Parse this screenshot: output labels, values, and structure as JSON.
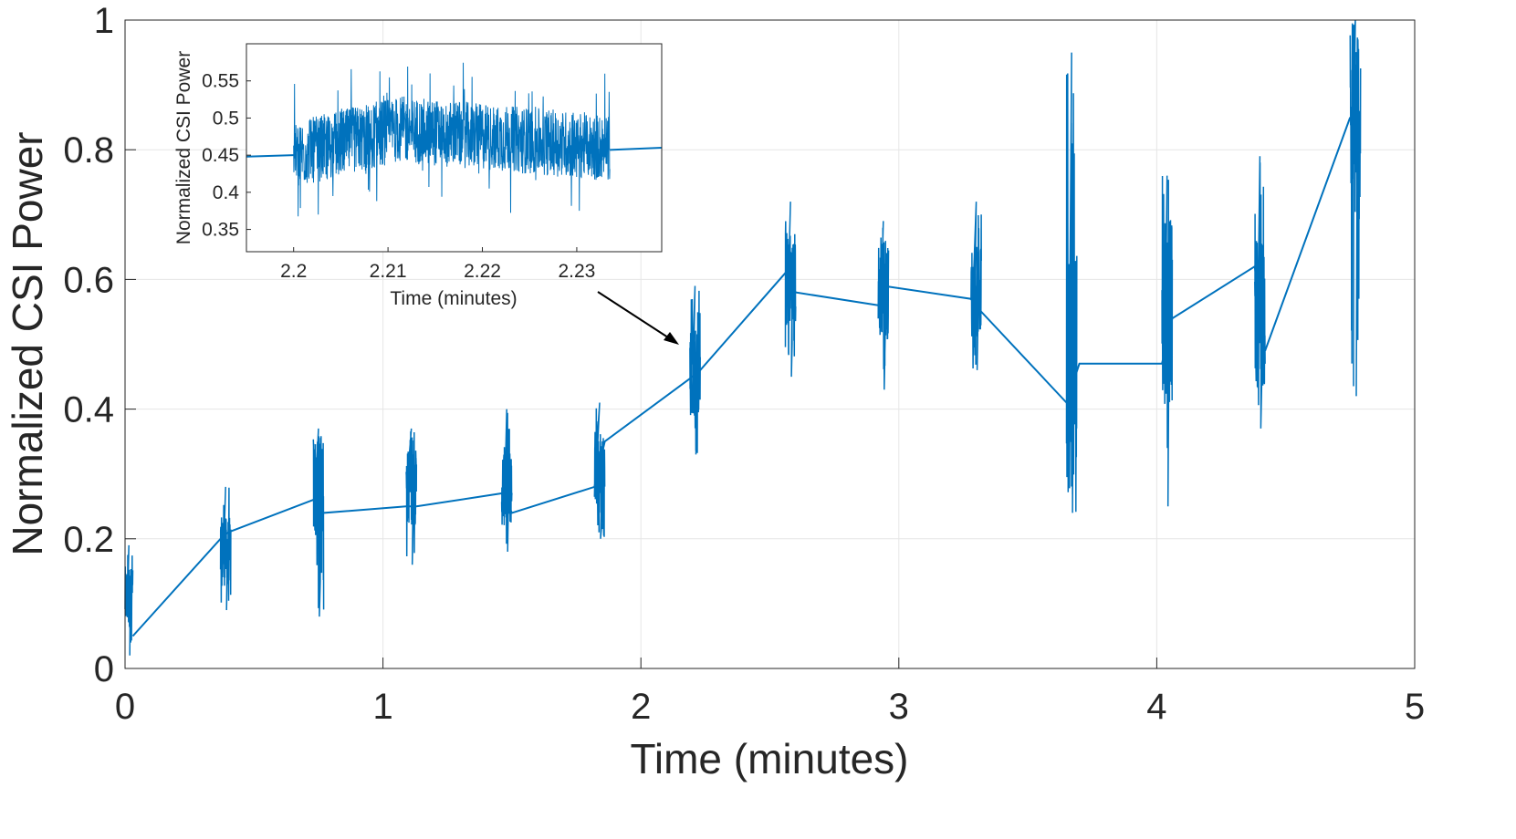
{
  "colors": {
    "series": "#0072BD",
    "axis": "#262626",
    "grid": "#e6e6e6",
    "annotation_arrow": "#000000"
  },
  "chart_data": [
    {
      "type": "line",
      "xlabel": "Time (minutes)",
      "ylabel": "Normalized CSI Power",
      "xlim": [
        0,
        5
      ],
      "ylim": [
        0,
        1
      ],
      "xticks": [
        "0",
        "1",
        "2",
        "3",
        "4",
        "5"
      ],
      "yticks": [
        "0",
        "0.2",
        "0.4",
        "0.6",
        "0.8",
        "1"
      ],
      "grid": true,
      "series": [
        {
          "bursts": [
            {
              "start": 0.0,
              "end": 0.03,
              "center": 0.11,
              "min": 0.02,
              "max": 0.19
            },
            {
              "start": 0.37,
              "end": 0.41,
              "center": 0.18,
              "min": 0.09,
              "max": 0.28
            },
            {
              "start": 0.73,
              "end": 0.77,
              "center": 0.28,
              "min": 0.08,
              "max": 0.37
            },
            {
              "start": 1.09,
              "end": 1.13,
              "center": 0.28,
              "min": 0.16,
              "max": 0.37
            },
            {
              "start": 1.46,
              "end": 1.5,
              "center": 0.28,
              "min": 0.18,
              "max": 0.4
            },
            {
              "start": 1.82,
              "end": 1.86,
              "center": 0.31,
              "min": 0.2,
              "max": 0.41
            },
            {
              "start": 2.19,
              "end": 2.23,
              "center": 0.46,
              "min": 0.33,
              "max": 0.59
            },
            {
              "start": 2.56,
              "end": 2.6,
              "center": 0.6,
              "min": 0.45,
              "max": 0.72
            },
            {
              "start": 2.92,
              "end": 2.96,
              "center": 0.58,
              "min": 0.43,
              "max": 0.69
            },
            {
              "start": 3.28,
              "end": 3.32,
              "center": 0.58,
              "min": 0.46,
              "max": 0.72
            },
            {
              "start": 3.65,
              "end": 3.69,
              "center": 0.47,
              "min": 0.24,
              "max": 0.95
            },
            {
              "start": 4.02,
              "end": 4.06,
              "center": 0.55,
              "min": 0.25,
              "max": 0.76
            },
            {
              "start": 4.38,
              "end": 4.42,
              "center": 0.55,
              "min": 0.37,
              "max": 0.79
            },
            {
              "start": 4.75,
              "end": 4.79,
              "center": 0.85,
              "min": 0.42,
              "max": 1.0
            }
          ],
          "connecting_line": [
            [
              0.03,
              0.05
            ],
            [
              0.37,
              0.2
            ],
            [
              0.4,
              0.21
            ],
            [
              0.73,
              0.26
            ],
            [
              0.77,
              0.24
            ],
            [
              1.09,
              0.25
            ],
            [
              1.13,
              0.25
            ],
            [
              1.46,
              0.27
            ],
            [
              1.5,
              0.24
            ],
            [
              1.82,
              0.28
            ],
            [
              1.86,
              0.35
            ],
            [
              2.2,
              0.45
            ],
            [
              2.23,
              0.46
            ],
            [
              2.56,
              0.61
            ],
            [
              2.6,
              0.58
            ],
            [
              2.92,
              0.56
            ],
            [
              2.94,
              0.59
            ],
            [
              3.28,
              0.57
            ],
            [
              3.32,
              0.55
            ],
            [
              3.65,
              0.41
            ],
            [
              3.7,
              0.47
            ],
            [
              4.02,
              0.47
            ],
            [
              4.06,
              0.54
            ],
            [
              4.38,
              0.62
            ],
            [
              4.42,
              0.49
            ],
            [
              4.75,
              0.85
            ]
          ]
        }
      ]
    },
    {
      "type": "line",
      "inset": true,
      "xlabel": "Time (minutes)",
      "ylabel": "Normalized CSI Power",
      "xlim": [
        2.195,
        2.239
      ],
      "ylim": [
        0.32,
        0.6
      ],
      "xticks": [
        "2.2",
        "2.21",
        "2.22",
        "2.23"
      ],
      "yticks": [
        "0.35",
        "0.4",
        "0.45",
        "0.5",
        "0.55"
      ],
      "grid": false,
      "series": [
        {
          "lead_line": [
            [
              2.195,
              0.448
            ],
            [
              2.2,
              0.45
            ]
          ],
          "noise_band": {
            "start": 2.2,
            "end": 2.2335,
            "mean_start": 0.45,
            "mean_peak": 0.485,
            "mean_end": 0.46,
            "min": 0.34,
            "max": 0.59
          },
          "trail_line": [
            [
              2.2335,
              0.457
            ],
            [
              2.239,
              0.46
            ]
          ]
        }
      ]
    }
  ]
}
